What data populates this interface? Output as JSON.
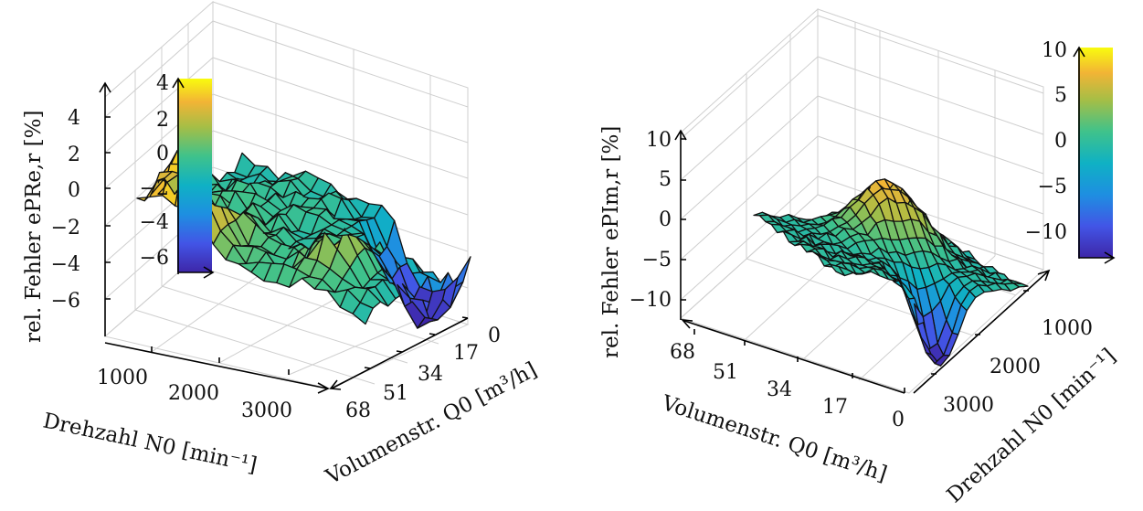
{
  "chart_data": [
    {
      "type": "surface",
      "xlabel": "Drehzahl N0 [min⁻¹]",
      "ylabel": "Volumenstr. Q0 [m³/h]",
      "zlabel": "rel. Fehler ePRe,r [%]",
      "x_ticks": [
        "1000",
        "2000",
        "3000"
      ],
      "y_ticks": [
        "0",
        "17",
        "34",
        "51",
        "68"
      ],
      "z_ticks": [
        "4",
        "2",
        "0",
        "−2",
        "−4",
        "−6"
      ],
      "colorbar_ticks": [
        "4",
        "2",
        "0",
        "−2",
        "−4",
        "−6"
      ],
      "xlim": [
        500,
        3500
      ],
      "ylim": [
        0,
        68
      ],
      "zlim": [
        -8,
        6
      ],
      "colorbar_range": [
        -7,
        4.5
      ],
      "colormap": "parula",
      "notes_values": "approximate error surface; peak ≈ +4.7 % at low speed / high flow, minimum ≈ −6.5 % at high speed / low flow"
    },
    {
      "type": "surface",
      "xlabel": "Volumenstr. Q0 [m³/h]",
      "ylabel": "Drehzahl N0 [min⁻¹]",
      "zlabel": "rel. Fehler ePIm,r [%]",
      "x_ticks": [
        "68",
        "51",
        "34",
        "17",
        "0"
      ],
      "y_ticks": [
        "1000",
        "2000",
        "3000"
      ],
      "z_ticks": [
        "10",
        "5",
        "0",
        "−5",
        "−10"
      ],
      "colorbar_ticks": [
        "10",
        "5",
        "0",
        "−5",
        "−10"
      ],
      "xlim": [
        0,
        68
      ],
      "ylim": [
        500,
        3500
      ],
      "zlim": [
        -13,
        13
      ],
      "colorbar_range": [
        -13,
        10
      ],
      "colormap": "parula",
      "notes_values": "approximate error surface; peak ≈ +9.5 % at mid flow, minimum ≈ −12 % at high speed / low flow"
    }
  ]
}
